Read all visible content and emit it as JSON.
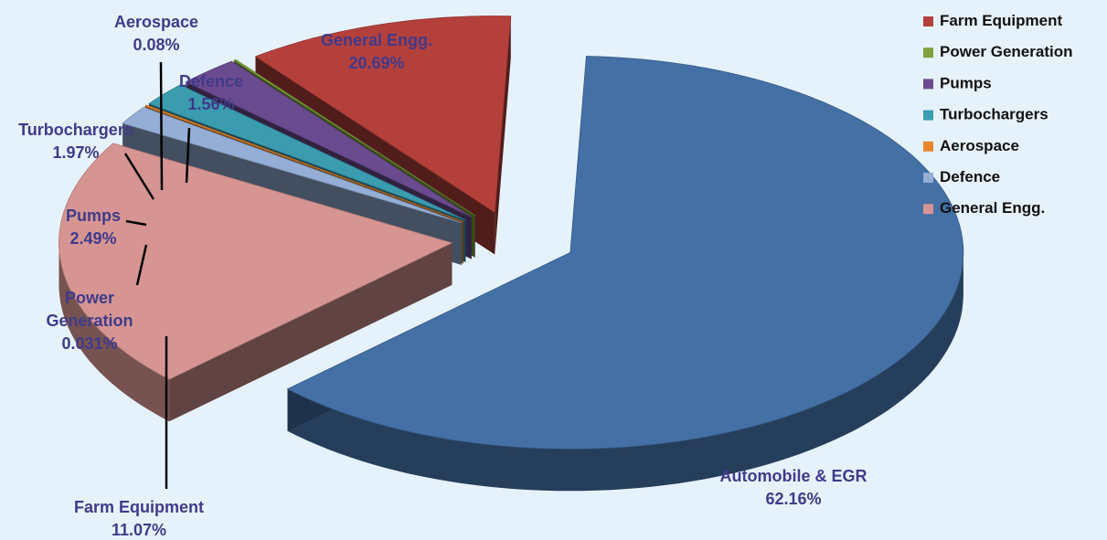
{
  "chart_data": {
    "type": "pie",
    "variant": "3d-exploded",
    "slices": [
      {
        "name": "Automobile & EGR",
        "value": 62.16,
        "label": "62.16%",
        "color": "#4470a6",
        "in_legend": false
      },
      {
        "name": "Farm Equipment",
        "value": 11.07,
        "label": "11.07%",
        "color": "#b4403c",
        "in_legend": true
      },
      {
        "name": "Power Generation",
        "value": 0.031,
        "label": "0.031%",
        "color": "#7fa03d",
        "in_legend": true
      },
      {
        "name": "Pumps",
        "value": 2.49,
        "label": "2.49%",
        "color": "#6b4b8f",
        "in_legend": true
      },
      {
        "name": "Turbochargers",
        "value": 1.97,
        "label": "1.97%",
        "color": "#3b9cb0",
        "in_legend": true
      },
      {
        "name": "Aerospace",
        "value": 0.08,
        "label": "0.08%",
        "color": "#e6872d",
        "in_legend": true
      },
      {
        "name": "Defence",
        "value": 1.56,
        "label": "1.56%",
        "color": "#94aed6",
        "in_legend": true
      },
      {
        "name": "General Engg.",
        "value": 20.69,
        "label": "20.69%",
        "color": "#d69592",
        "in_legend": true
      }
    ],
    "legend_position": "top-right",
    "label_color": "#403a8a"
  }
}
